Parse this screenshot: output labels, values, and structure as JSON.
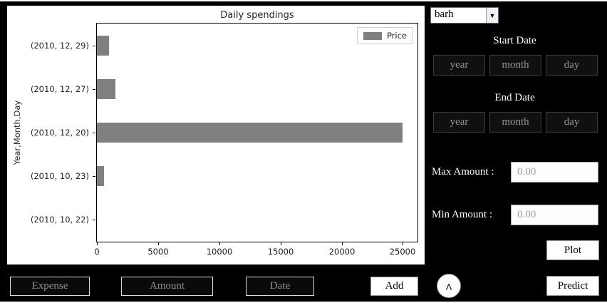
{
  "chart_data": {
    "type": "barh",
    "title": "Daily spendings",
    "ylabel": "Year,Month,Day",
    "categories": [
      "(2010, 10, 22)",
      "(2010, 10, 23)",
      "(2010, 12, 20)",
      "(2010, 12, 27)",
      "(2010, 12, 29)"
    ],
    "values": [
      0,
      600,
      25000,
      1500,
      1000
    ],
    "xticks": [
      0,
      5000,
      10000,
      15000,
      20000,
      25000
    ],
    "xlim": [
      0,
      26200
    ],
    "bar_color": "#808080",
    "grid": false,
    "legend_position": "upper right",
    "legend": [
      {
        "label": "Price",
        "color": "#808080"
      }
    ]
  },
  "controls": {
    "chart_type": {
      "value": "barh"
    },
    "start_date": {
      "label": "Start Date",
      "year": "year",
      "month": "month",
      "day": "day"
    },
    "end_date": {
      "label": "End Date",
      "year": "year",
      "month": "month",
      "day": "day"
    },
    "max_amount": {
      "label": "Max Amount :",
      "value": "0.00"
    },
    "min_amount": {
      "label": "Min Amount :",
      "value": "0.00"
    },
    "plot_button": "Plot",
    "predict_button": "Predict"
  },
  "entry_bar": {
    "expense": "Expense",
    "amount": "Amount",
    "date": "Date",
    "add_button": "Add"
  },
  "icons": {
    "dropdown_arrow": "▼",
    "up_arrow": "^"
  },
  "colors": {
    "background": "#000000",
    "panel": "#ffffff",
    "bar": "#808080"
  }
}
